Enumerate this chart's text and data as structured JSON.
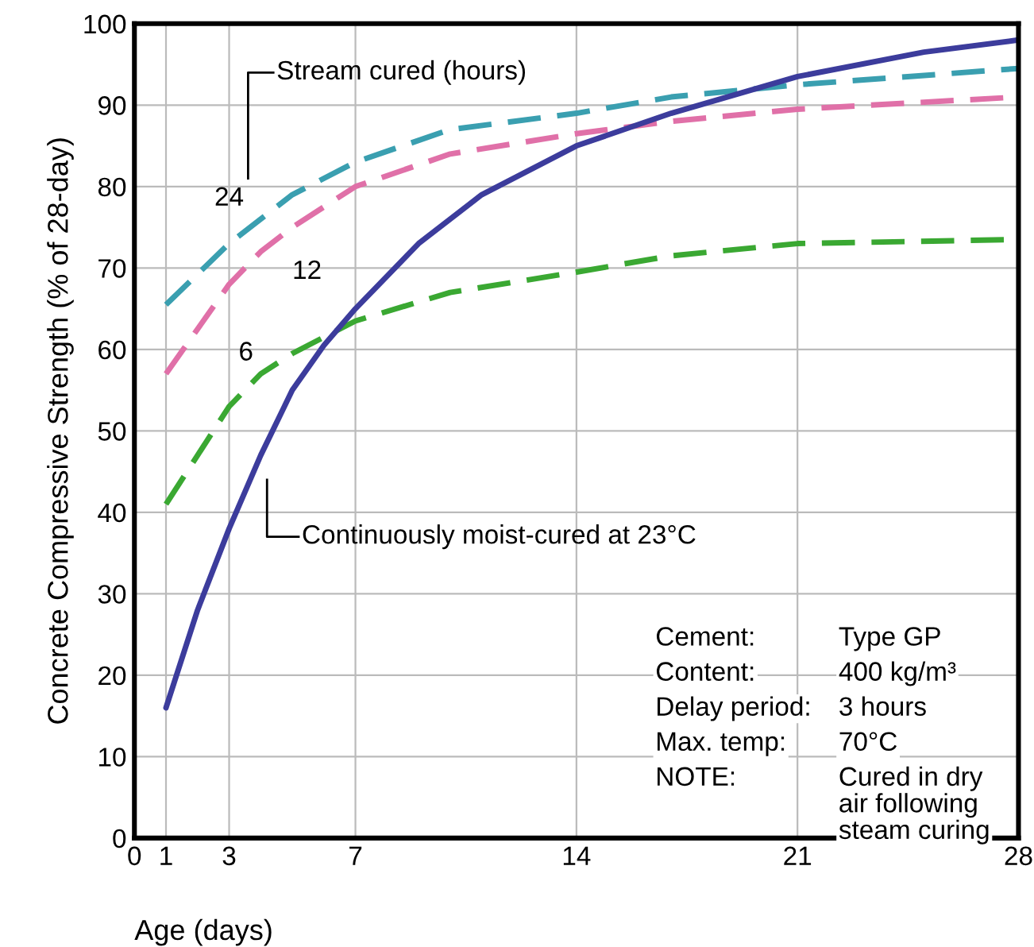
{
  "chart_data": {
    "type": "line",
    "xlabel": "Age (days)",
    "ylabel": "Concrete Compressive Strength (% of 28-day)",
    "xlim": [
      0,
      28
    ],
    "ylim": [
      0,
      100
    ],
    "xticks": [
      0,
      1,
      3,
      7,
      14,
      21,
      28
    ],
    "yticks": [
      0,
      10,
      20,
      30,
      40,
      50,
      60,
      70,
      80,
      90,
      100
    ],
    "grid": true,
    "marker": "none",
    "series": [
      {
        "name": "24",
        "color": "#3a9fb0",
        "line_style": "dashed",
        "x": [
          1,
          3,
          4,
          5,
          7,
          10,
          14,
          17,
          21,
          28
        ],
        "values": [
          65.5,
          73,
          76,
          79,
          83,
          87,
          89,
          91,
          92.5,
          94.5
        ]
      },
      {
        "name": "12",
        "color": "#e070a8",
        "line_style": "dashed",
        "x": [
          1,
          3,
          4,
          5,
          7,
          10,
          14,
          17,
          21,
          28
        ],
        "values": [
          57,
          68,
          72,
          75,
          80,
          84,
          86.5,
          88,
          89.5,
          91
        ]
      },
      {
        "name": "6",
        "color": "#3aa832",
        "line_style": "dashed",
        "x": [
          1,
          2,
          3,
          4,
          5,
          7,
          10,
          14,
          17,
          21,
          28
        ],
        "values": [
          41,
          47,
          53,
          57,
          59.5,
          63.5,
          67,
          69.5,
          71.5,
          73,
          73.5
        ]
      },
      {
        "name": "Continuously moist-cured at 23°C",
        "color": "#3c3c9c",
        "line_style": "solid",
        "x": [
          1,
          2,
          3,
          4,
          5,
          6,
          7,
          9,
          11,
          14,
          17,
          21,
          25,
          28
        ],
        "values": [
          16,
          28,
          38,
          47,
          55,
          60.5,
          65,
          73,
          79,
          85,
          89,
          93.5,
          96.5,
          98
        ]
      }
    ],
    "annotations": [
      "Stream cured (hours)",
      "Cement:",
      "Type GP",
      "Content:",
      "400 kg/m³",
      "Delay period:",
      "3 hours",
      "Max. temp:",
      "70°C",
      "NOTE:",
      "Cured in dry\nair following\nsteam curing"
    ]
  }
}
